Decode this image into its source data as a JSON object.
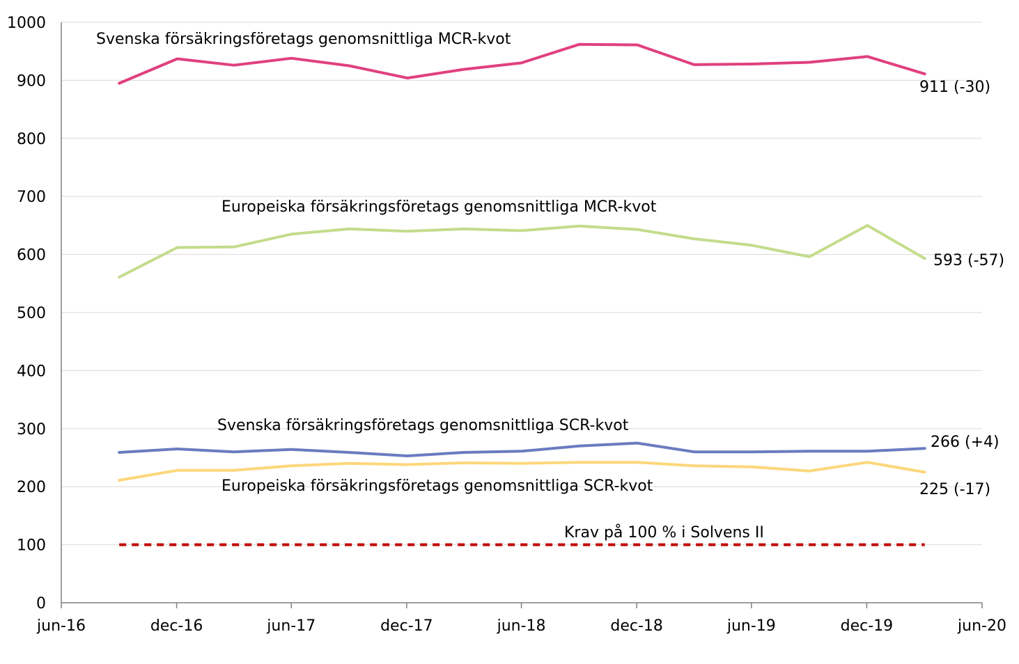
{
  "chart_data": {
    "type": "line",
    "title": "",
    "xlabel": "",
    "ylabel": "",
    "ylim": [
      0,
      1000
    ],
    "yticks": [
      0,
      100,
      200,
      300,
      400,
      500,
      600,
      700,
      800,
      900,
      1000
    ],
    "xlim": [
      "2016-06-30",
      "2020-06-30"
    ],
    "xticks": [
      "jun-16",
      "dec-16",
      "jun-17",
      "dec-17",
      "jun-18",
      "dec-18",
      "jun-19",
      "dec-19",
      "jun-20"
    ],
    "x": [
      "2016-09-30",
      "2016-12-31",
      "2017-03-31",
      "2017-06-30",
      "2017-09-30",
      "2017-12-31",
      "2018-03-31",
      "2018-06-30",
      "2018-09-30",
      "2018-12-31",
      "2019-03-31",
      "2019-06-30",
      "2019-09-30",
      "2019-12-31",
      "2020-03-31"
    ],
    "grid": true,
    "series": [
      {
        "key": "se_mcr",
        "name": "Svenska försäkringsföretags genomsnittliga MCR-kvot",
        "color": "#e0407e",
        "values": [
          895,
          937,
          926,
          938,
          925,
          904,
          919,
          930,
          962,
          961,
          927,
          928,
          931,
          941,
          911
        ],
        "end_label": "911 (-30)"
      },
      {
        "key": "eu_mcr",
        "name": "Europeiska försäkringsföretags genomsnittliga MCR-kvot",
        "color": "#c3dc8c",
        "values": [
          561,
          612,
          613,
          635,
          644,
          640,
          644,
          641,
          649,
          643,
          627,
          616,
          596,
          650,
          593
        ],
        "end_label": "593 (-57)"
      },
      {
        "key": "se_scr",
        "name": "Svenska försäkringsföretags genomsnittliga SCR-kvot",
        "color": "#6a7cc0",
        "values": [
          259,
          265,
          260,
          264,
          259,
          253,
          259,
          261,
          270,
          275,
          260,
          260,
          261,
          261,
          266
        ],
        "end_label": "266 (+4)"
      },
      {
        "key": "eu_scr",
        "name": "Europeiska försäkringsföretags genomsnittliga SCR-kvot",
        "color": "#fdd77b",
        "values": [
          211,
          228,
          228,
          236,
          240,
          238,
          241,
          240,
          242,
          242,
          236,
          234,
          227,
          242,
          225
        ],
        "end_label": "225 (-17)"
      },
      {
        "key": "req",
        "name": "Krav på 100 % i Solvens II",
        "color": "#c00000",
        "dashed": true,
        "values": [
          100,
          100,
          100,
          100,
          100,
          100,
          100,
          100,
          100,
          100,
          100,
          100,
          100,
          100,
          100
        ]
      }
    ]
  }
}
